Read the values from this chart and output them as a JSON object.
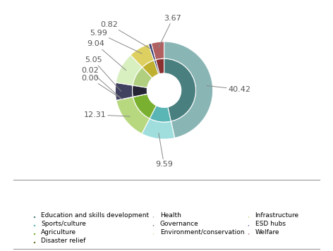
{
  "labels": [
    "Education and skills development",
    "Sports/culture",
    "Agriculture",
    "Disaster relief",
    "Health",
    "Governance",
    "Environment/conservation",
    "Infrastructure",
    "ESD hubs",
    "Welfare"
  ],
  "values": [
    40.42,
    9.59,
    12.31,
    0.02,
    0.0,
    5.05,
    9.04,
    5.99,
    0.82,
    3.67
  ],
  "inner_colors": [
    "#4a7f7f",
    "#5ab5b5",
    "#7ab030",
    "#6b6b1e",
    "#8a8a9a",
    "#252535",
    "#b0d080",
    "#c0b030",
    "#1a2f60",
    "#8a3030"
  ],
  "outer_colors": [
    "#8ab5b5",
    "#a0dede",
    "#b8d880",
    "#a0a060",
    "#b8b8c8",
    "#404060",
    "#d8efc0",
    "#ddd060",
    "#303870",
    "#b06060"
  ],
  "label_values": [
    "40.42",
    "9.59",
    "12.31",
    "0.02",
    "0.00",
    "5.05",
    "9.04",
    "5.99",
    "0.82",
    "3.67"
  ],
  "background_color": "#ffffff",
  "legend_row1": [
    "Education and skills development",
    "Sports/culture",
    "Agriculture"
  ],
  "legend_row2": [
    "Disaster relief",
    "Health",
    "Governance"
  ],
  "legend_row3": [
    "Environment/conservation"
  ],
  "legend_row4": [
    "Infrastructure",
    "ESD hubs",
    "Welfare"
  ],
  "label_fontsize": 8,
  "legend_fontsize": 6.5
}
